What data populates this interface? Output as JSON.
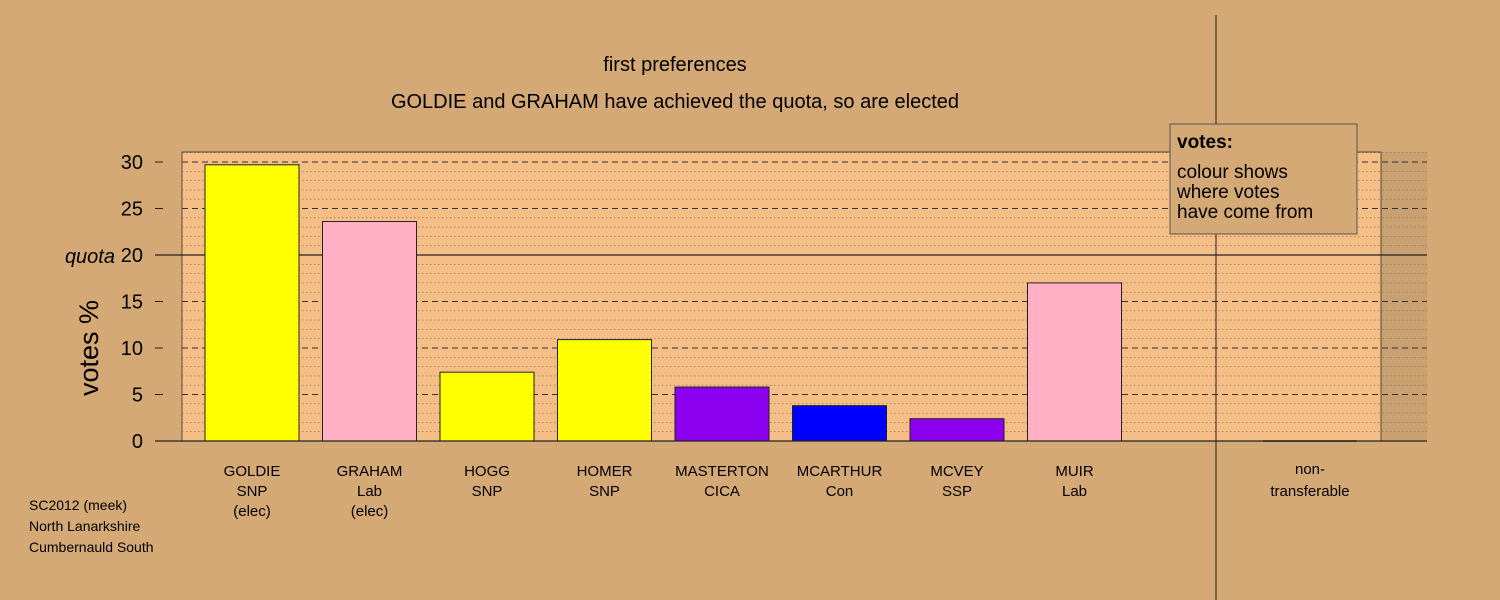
{
  "chart_data": {
    "type": "bar",
    "title": "first preferences",
    "subtitle": "GOLDIE and GRAHAM have achieved the quota, so are elected",
    "ylabel": "votes %",
    "ylim": [
      0,
      31
    ],
    "yticks": [
      0,
      5,
      10,
      15,
      20,
      25,
      30
    ],
    "quota": {
      "label": "quota",
      "value": 20
    },
    "categories": [
      {
        "name": "GOLDIE",
        "party": "SNP",
        "status": "(elec)",
        "value": 29.7,
        "color": "#ffff00"
      },
      {
        "name": "GRAHAM",
        "party": "Lab",
        "status": "(elec)",
        "value": 23.6,
        "color": "#ffb0c4"
      },
      {
        "name": "HOGG",
        "party": "SNP",
        "status": "",
        "value": 7.4,
        "color": "#ffff00"
      },
      {
        "name": "HOMER",
        "party": "SNP",
        "status": "",
        "value": 10.9,
        "color": "#ffff00"
      },
      {
        "name": "MASTERTON",
        "party": "CICA",
        "status": "",
        "value": 5.8,
        "color": "#8b00ee"
      },
      {
        "name": "MCARTHUR",
        "party": "Con",
        "status": "",
        "value": 3.8,
        "color": "#0000ff"
      },
      {
        "name": "MCVEY",
        "party": "SSP",
        "status": "",
        "value": 2.4,
        "color": "#8b00ee"
      },
      {
        "name": "MUIR",
        "party": "Lab",
        "status": "",
        "value": 17.0,
        "color": "#ffb0c4"
      }
    ],
    "nontransferable": {
      "label_line1": "non-",
      "label_line2": "transferable",
      "value": 0
    },
    "legend": {
      "title": "votes:",
      "lines": [
        "colour shows",
        "where votes",
        "have come from"
      ],
      "placement": "top-right"
    },
    "grid": true
  },
  "footer": {
    "line1": "SC2012 (meek)",
    "line2": "North Lanarkshire",
    "line3": "Cumbernauld South"
  },
  "colors": {
    "page_background": "#d4a975",
    "plot_background": "#f6be87",
    "right_panel_background": "#c9a070"
  }
}
